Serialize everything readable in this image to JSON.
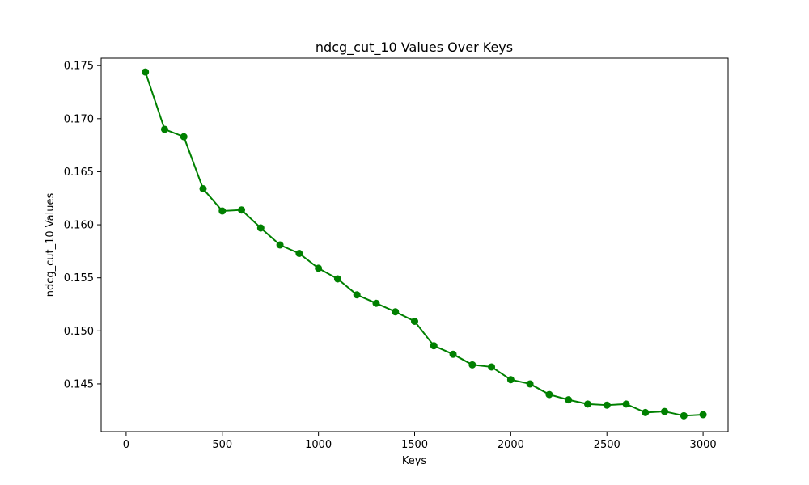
{
  "chart_data": {
    "type": "line",
    "title": "ndcg_cut_10 Values Over Keys",
    "xlabel": "Keys",
    "ylabel": "ndcg_cut_10 Values",
    "xlim": [
      -130,
      3130
    ],
    "ylim": [
      0.1405,
      0.1757
    ],
    "x_ticks": [
      0,
      500,
      1000,
      1500,
      2000,
      2500,
      3000
    ],
    "y_ticks": [
      0.145,
      0.15,
      0.155,
      0.16,
      0.165,
      0.17,
      0.175
    ],
    "x_tick_labels": [
      "0",
      "500",
      "1000",
      "1500",
      "2000",
      "2500",
      "3000"
    ],
    "y_tick_labels": [
      "0.145",
      "0.150",
      "0.155",
      "0.160",
      "0.165",
      "0.170",
      "0.175"
    ],
    "grid": false,
    "series": [
      {
        "color": "#008000",
        "marker": "circle",
        "x": [
          100,
          200,
          300,
          400,
          500,
          600,
          700,
          800,
          900,
          1000,
          1100,
          1200,
          1300,
          1400,
          1500,
          1600,
          1700,
          1800,
          1900,
          2000,
          2100,
          2200,
          2300,
          2400,
          2500,
          2600,
          2700,
          2800,
          2900,
          3000
        ],
        "y": [
          0.1744,
          0.169,
          0.1683,
          0.1634,
          0.1613,
          0.1614,
          0.1597,
          0.1581,
          0.1573,
          0.1559,
          0.1549,
          0.1534,
          0.1526,
          0.1518,
          0.1509,
          0.1486,
          0.1478,
          0.1468,
          0.1466,
          0.1454,
          0.145,
          0.144,
          0.1435,
          0.1431,
          0.143,
          0.1431,
          0.1423,
          0.1424,
          0.142,
          0.1421
        ]
      }
    ]
  }
}
